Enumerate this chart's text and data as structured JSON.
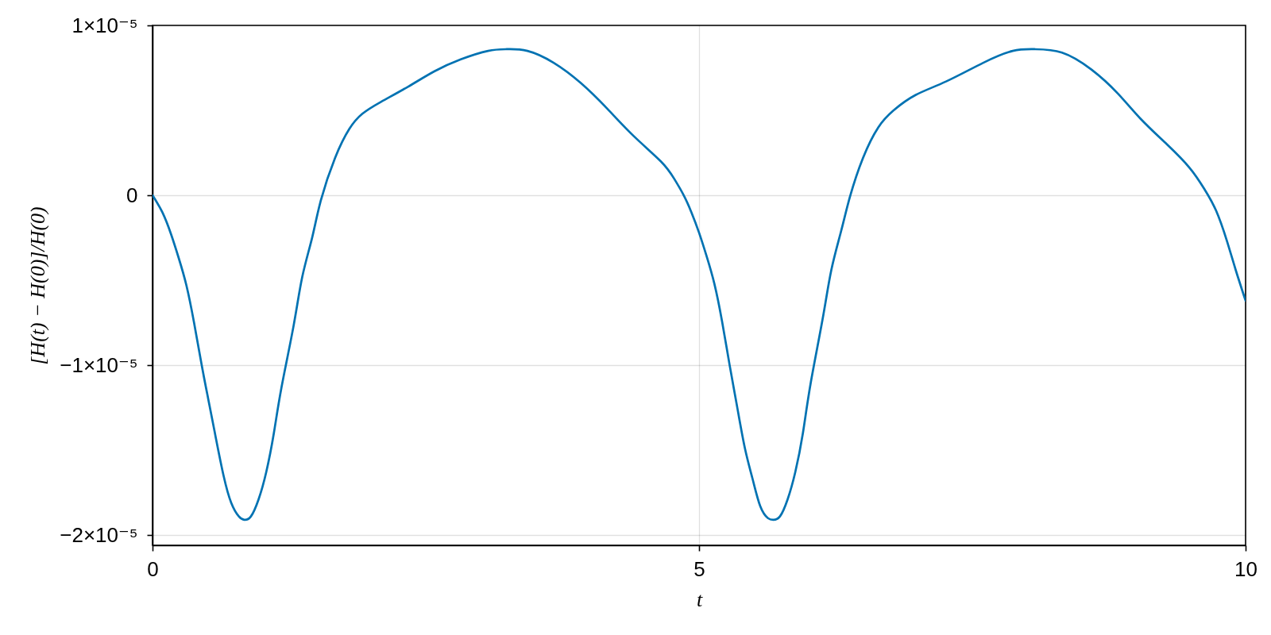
{
  "chart_data": {
    "type": "line",
    "xlabel": "t",
    "ylabel": "[H(t) − H(0)]/H(0)",
    "x": [
      0,
      0.09,
      0.17,
      0.24,
      0.31,
      0.38,
      0.45,
      0.51,
      0.58,
      0.65,
      0.72,
      0.79,
      0.84,
      0.9,
      0.97,
      1.04,
      1.11,
      1.18,
      1.29,
      1.37,
      1.46,
      1.54,
      1.67,
      1.8,
      1.92,
      2.09,
      2.34,
      2.58,
      2.82,
      3.07,
      3.24,
      3.43,
      3.67,
      3.92,
      4.16,
      4.4,
      4.65,
      4.77,
      4.86,
      4.93,
      5.0,
      5.07,
      5.14,
      5.21,
      5.28,
      5.35,
      5.42,
      5.49,
      5.56,
      5.63,
      5.68,
      5.74,
      5.81,
      5.88,
      5.95,
      6.02,
      6.13,
      6.21,
      6.3,
      6.38,
      6.5,
      6.64,
      6.78,
      6.98,
      7.26,
      7.6,
      7.87,
      8.07,
      8.32,
      8.59,
      8.83,
      9.04,
      9.28,
      9.49,
      9.62,
      9.73,
      9.83,
      9.91,
      10
    ],
    "series": [
      {
        "color": "#0072b2",
        "values": [
          0,
          -1e-06,
          -2.3e-06,
          -3.7e-06,
          -5.3e-06,
          -7.5e-06,
          -1e-05,
          -1.2e-05,
          -1.43e-05,
          -1.65e-05,
          -1.81e-05,
          -1.89e-05,
          -1.91e-05,
          -1.89e-05,
          -1.79e-05,
          -1.63e-05,
          -1.4e-05,
          -1.13e-05,
          -7.7e-06,
          -4.8e-06,
          -2.5e-06,
          -3e-07,
          2.2e-06,
          3.9e-06,
          4.8e-06,
          5.5e-06,
          6.4e-06,
          7.3e-06,
          8e-06,
          8.5e-06,
          8.6e-06,
          8.5e-06,
          7.8e-06,
          6.6e-06,
          5.1e-06,
          3.5e-06,
          2e-06,
          1e-06,
          0,
          -1e-06,
          -2.2e-06,
          -3.6e-06,
          -5.2e-06,
          -7.4e-06,
          -1e-05,
          -1.25e-05,
          -1.49e-05,
          -1.67e-05,
          -1.83e-05,
          -1.9e-05,
          -1.91e-05,
          -1.89e-05,
          -1.79e-05,
          -1.63e-05,
          -1.4e-05,
          -1.11e-05,
          -7.3e-06,
          -4.4e-06,
          -2.1e-06,
          -1e-07,
          2.2e-06,
          4e-06,
          5e-06,
          5.9e-06,
          6.7e-06,
          7.8e-06,
          8.5e-06,
          8.6e-06,
          8.4e-06,
          7.4e-06,
          6e-06,
          4.5e-06,
          3e-06,
          1.6e-06,
          4e-07,
          -9e-07,
          -2.7e-06,
          -4.4e-06,
          -6.2e-06
        ]
      }
    ],
    "xlim": [
      0,
      10
    ],
    "xticks": [
      0,
      5,
      10
    ],
    "ylim": [
      -2.06e-05,
      1e-05
    ],
    "yticks": [
      {
        "value": -2e-05,
        "label": "−2×10⁻⁵"
      },
      {
        "value": -1e-05,
        "label": "−1×10⁻⁵"
      },
      {
        "value": 0,
        "label": "0"
      },
      {
        "value": 1e-05,
        "label": "1×10⁻⁵"
      }
    ],
    "grid": true,
    "line_style": "solid"
  }
}
